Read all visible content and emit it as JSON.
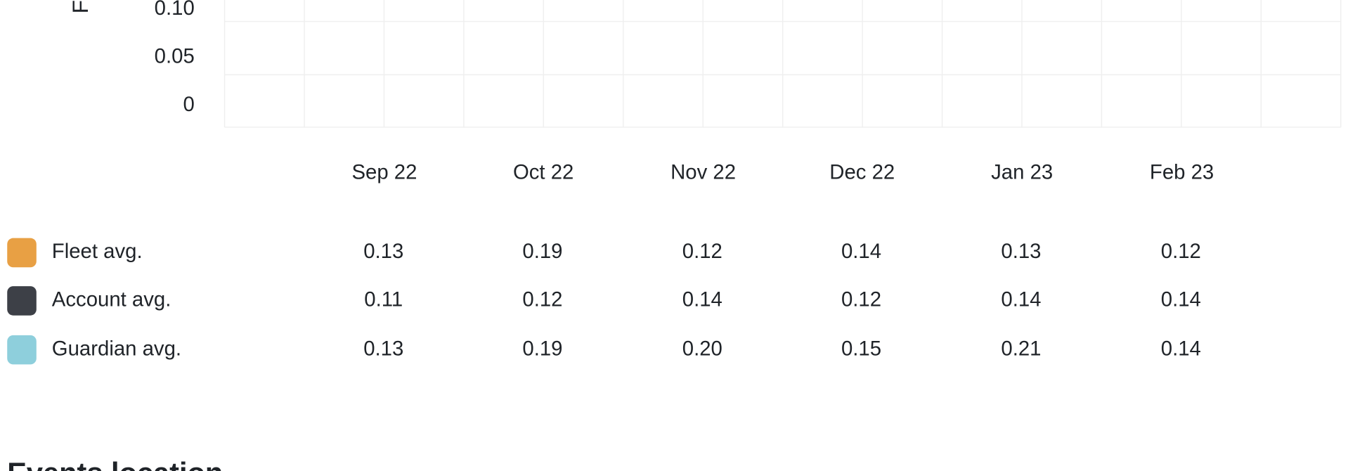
{
  "chart": {
    "y_label": "F",
    "yticks": [
      "0.10",
      "0.05",
      "0"
    ],
    "months": [
      "Sep 22",
      "Oct 22",
      "Nov 22",
      "Dec 22",
      "Jan 23",
      "Feb 23"
    ]
  },
  "table": {
    "rows": [
      {
        "name": "Fleet avg.",
        "color": "#e8a044",
        "cells": [
          "0.13",
          "0.19",
          "0.12",
          "0.14",
          "0.13",
          "0.12"
        ]
      },
      {
        "name": "Account avg.",
        "color": "#3d4047",
        "cells": [
          "0.11",
          "0.12",
          "0.14",
          "0.12",
          "0.14",
          "0.14"
        ]
      },
      {
        "name": "Guardian avg.",
        "color": "#8ecfdc",
        "cells": [
          "0.13",
          "0.19",
          "0.20",
          "0.15",
          "0.21",
          "0.14"
        ]
      }
    ]
  },
  "section": {
    "heading": "Events location"
  }
}
